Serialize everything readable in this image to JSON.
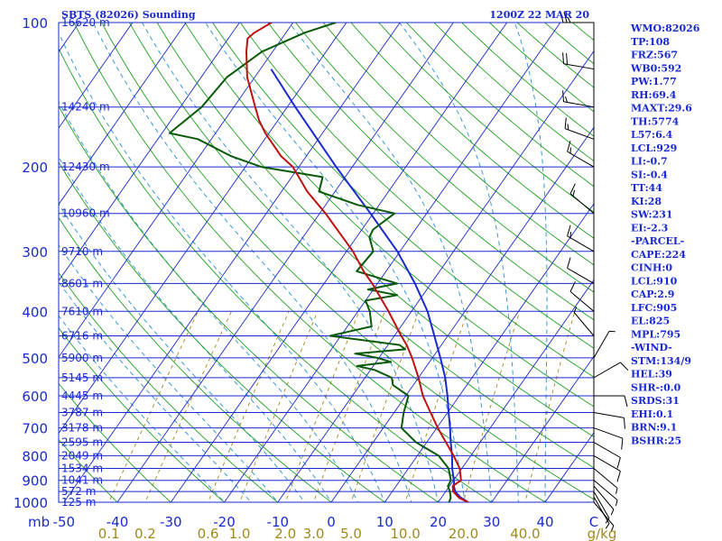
{
  "header": {
    "station": "SBTS (82026) Sounding",
    "time": "1200Z 22 MAR 20"
  },
  "indices": [
    "WMO:82026",
    "TP:108",
    "FRZ:567",
    "WB0:592",
    "PW:1.77",
    "RH:69.4",
    "MAXT:29.6",
    "TH:5774",
    "L57:6.4",
    "LCL:929",
    "LI:-0.7",
    "SI:-0.4",
    "TT:44",
    "KI:28",
    "SW:231",
    "EI:-2.3",
    "-PARCEL-",
    "CAPE:224",
    "CINH:0",
    "LCL:910",
    "CAP:2.9",
    "LFC:905",
    "EL:825",
    "MPL:795",
    "-WIND-",
    "STM:134/9",
    "HEL:39",
    "SHR-:0.0",
    "SRDS:31",
    "EHI:0.1",
    "BRN:9.1",
    "BSHR:25"
  ],
  "colors": {
    "isobar": "#1a2ad0",
    "isotherm": "#1a2ad0",
    "dry_adiabat": "#22a022",
    "moist_adiabat": "#3a9ad6",
    "mixing_ratio": "#a08a1e",
    "temperature": "#c01010",
    "dewpoint": "#0a5a0a",
    "parcel": "#1a2ad0",
    "wind_barb": "#000000"
  },
  "chart_data": {
    "type": "skew-t",
    "pressure_ticks": [
      100,
      200,
      300,
      400,
      500,
      600,
      700,
      800,
      900,
      1000
    ],
    "pressure_unit": "mb",
    "temperature_ticks": [
      "-50",
      "-40",
      "-30",
      "-20",
      "-10",
      "0",
      "10",
      "20",
      "30",
      "40",
      "C"
    ],
    "mixing_ratio_labels": [
      "0.1",
      "0.2",
      "0.6",
      "1.0",
      "2.0",
      "3.0",
      "5.0",
      "10.0",
      "20.0",
      "40.0",
      "g/kg"
    ],
    "mixing_ratio_values": [
      0.1,
      0.2,
      0.6,
      1.0,
      2.0,
      3.0,
      5.0,
      10.0,
      20.0,
      40.0
    ],
    "heights": [
      {
        "p": 1000,
        "label": "125 m"
      },
      {
        "p": 950,
        "label": "572 m"
      },
      {
        "p": 900,
        "label": "1041 m"
      },
      {
        "p": 850,
        "label": "1534 m"
      },
      {
        "p": 800,
        "label": "2049 m"
      },
      {
        "p": 750,
        "label": "2595 m"
      },
      {
        "p": 700,
        "label": "3178 m"
      },
      {
        "p": 650,
        "label": "3787 m"
      },
      {
        "p": 600,
        "label": "4445 m"
      },
      {
        "p": 550,
        "label": "5145 m"
      },
      {
        "p": 500,
        "label": "5900 m"
      },
      {
        "p": 450,
        "label": "6716 m"
      },
      {
        "p": 400,
        "label": "7610 m"
      },
      {
        "p": 350,
        "label": "8601 m"
      },
      {
        "p": 300,
        "label": "9710 m"
      },
      {
        "p": 250,
        "label": "10960 m"
      },
      {
        "p": 200,
        "label": "12430 m"
      },
      {
        "p": 150,
        "label": "14240 m"
      },
      {
        "p": 100,
        "label": "16620 m"
      }
    ],
    "temperature_profile": [
      [
        1000,
        25.6
      ],
      [
        980,
        23.4
      ],
      [
        950,
        21.4
      ],
      [
        925,
        20.6
      ],
      [
        900,
        21.4
      ],
      [
        850,
        19.6
      ],
      [
        800,
        16.8
      ],
      [
        750,
        13.6
      ],
      [
        700,
        10.2
      ],
      [
        650,
        6.8
      ],
      [
        600,
        3.2
      ],
      [
        550,
        0.0
      ],
      [
        500,
        -3.8
      ],
      [
        470,
        -6.5
      ],
      [
        450,
        -8.7
      ],
      [
        400,
        -14.3
      ],
      [
        350,
        -21.0
      ],
      [
        330,
        -24.2
      ],
      [
        300,
        -28.8
      ],
      [
        250,
        -38.9
      ],
      [
        225,
        -45.2
      ],
      [
        200,
        -51.1
      ],
      [
        190,
        -54.7
      ],
      [
        170,
        -60.7
      ],
      [
        160,
        -63.5
      ],
      [
        150,
        -66.0
      ],
      [
        130,
        -71.4
      ],
      [
        115,
        -74.9
      ],
      [
        108,
        -76.4
      ],
      [
        105,
        -75.9
      ],
      [
        100,
        -74.0
      ]
    ],
    "dewpoint_profile": [
      [
        1000,
        22.0
      ],
      [
        980,
        21.8
      ],
      [
        950,
        20.8
      ],
      [
        925,
        19.7
      ],
      [
        900,
        19.5
      ],
      [
        850,
        17.5
      ],
      [
        800,
        14.0
      ],
      [
        750,
        8.0
      ],
      [
        700,
        3.4
      ],
      [
        650,
        1.8
      ],
      [
        600,
        0.5
      ],
      [
        570,
        -3.8
      ],
      [
        550,
        -5.0
      ],
      [
        530,
        -9.2
      ],
      [
        520,
        -13.0
      ],
      [
        510,
        -7.2
      ],
      [
        500,
        -10.3
      ],
      [
        490,
        -15.0
      ],
      [
        480,
        -6.2
      ],
      [
        470,
        -7.8
      ],
      [
        450,
        -22.0
      ],
      [
        430,
        -15.5
      ],
      [
        400,
        -17.8
      ],
      [
        380,
        -20.0
      ],
      [
        370,
        -14.8
      ],
      [
        360,
        -21.0
      ],
      [
        350,
        -16.3
      ],
      [
        330,
        -25.5
      ],
      [
        300,
        -25.0
      ],
      [
        280,
        -27.6
      ],
      [
        270,
        -27.9
      ],
      [
        250,
        -26.0
      ],
      [
        240,
        -34.0
      ],
      [
        225,
        -43.0
      ],
      [
        210,
        -44.2
      ],
      [
        200,
        -57.0
      ],
      [
        190,
        -64.0
      ],
      [
        175,
        -72.5
      ],
      [
        170,
        -78.6
      ],
      [
        150,
        -76.0
      ],
      [
        130,
        -75.2
      ],
      [
        115,
        -72.0
      ],
      [
        105,
        -66.5
      ],
      [
        100,
        -62.0
      ]
    ],
    "parcel_profile": [
      [
        1000,
        25.6
      ],
      [
        975,
        23.4
      ],
      [
        950,
        21.8
      ],
      [
        925,
        20.8
      ],
      [
        910,
        20.4
      ],
      [
        850,
        18.2
      ],
      [
        800,
        16.5
      ],
      [
        750,
        14.5
      ],
      [
        700,
        12.5
      ],
      [
        650,
        10.2
      ],
      [
        600,
        7.8
      ],
      [
        550,
        5.0
      ],
      [
        500,
        1.5
      ],
      [
        450,
        -2.5
      ],
      [
        400,
        -7.0
      ],
      [
        350,
        -13.0
      ],
      [
        300,
        -20.5
      ],
      [
        250,
        -30.5
      ],
      [
        200,
        -43.0
      ],
      [
        150,
        -58.5
      ],
      [
        125,
        -68.0
      ]
    ],
    "wind_barbs": [
      [
        1000,
        140,
        5
      ],
      [
        975,
        150,
        5
      ],
      [
        950,
        150,
        5
      ],
      [
        925,
        140,
        5
      ],
      [
        900,
        130,
        5
      ],
      [
        850,
        130,
        5
      ],
      [
        800,
        120,
        10
      ],
      [
        750,
        120,
        10
      ],
      [
        700,
        110,
        10
      ],
      [
        650,
        100,
        10
      ],
      [
        600,
        90,
        10
      ],
      [
        550,
        60,
        10
      ],
      [
        500,
        30,
        5
      ],
      [
        450,
        320,
        5
      ],
      [
        400,
        310,
        10
      ],
      [
        350,
        300,
        10
      ],
      [
        300,
        300,
        15
      ],
      [
        250,
        310,
        15
      ],
      [
        200,
        300,
        15
      ],
      [
        175,
        290,
        15
      ],
      [
        150,
        280,
        15
      ],
      [
        125,
        280,
        20
      ],
      [
        100,
        270,
        25
      ]
    ]
  }
}
